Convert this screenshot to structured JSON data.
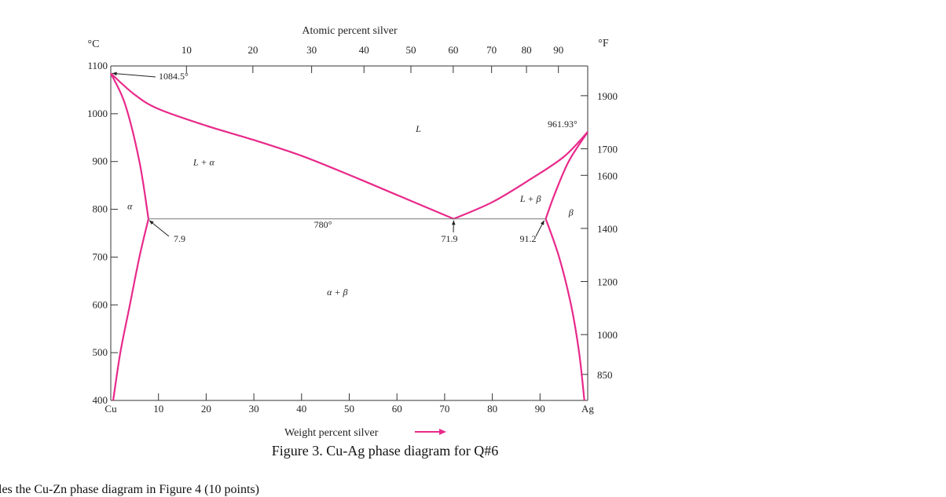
{
  "chart_data": {
    "type": "phase-diagram",
    "title": "Atomic percent silver",
    "xlabel": "Weight percent silver",
    "ylabel_left_unit": "°C",
    "ylabel_right_unit": "°F",
    "xlim": [
      0,
      100
    ],
    "ylim": [
      400,
      1100
    ],
    "x_ticks_bottom": [
      {
        "v": 0,
        "label": "Cu"
      },
      {
        "v": 10,
        "label": "10"
      },
      {
        "v": 20,
        "label": "20"
      },
      {
        "v": 30,
        "label": "30"
      },
      {
        "v": 40,
        "label": "40"
      },
      {
        "v": 50,
        "label": "50"
      },
      {
        "v": 60,
        "label": "60"
      },
      {
        "v": 70,
        "label": "70"
      },
      {
        "v": 80,
        "label": "80"
      },
      {
        "v": 90,
        "label": "90"
      },
      {
        "v": 100,
        "label": "Ag"
      }
    ],
    "x_ticks_top": [
      {
        "v": 10,
        "label": "10"
      },
      {
        "v": 20,
        "label": "20"
      },
      {
        "v": 30,
        "label": "30"
      },
      {
        "v": 40,
        "label": "40"
      },
      {
        "v": 50,
        "label": "50"
      },
      {
        "v": 60,
        "label": "60"
      },
      {
        "v": 70,
        "label": "70"
      },
      {
        "v": 80,
        "label": "80"
      },
      {
        "v": 90,
        "label": "90"
      }
    ],
    "y_ticks_left": [
      400,
      500,
      600,
      700,
      800,
      900,
      1000,
      1100
    ],
    "y_ticks_right": [
      {
        "v": 850,
        "label": "850"
      },
      {
        "v": 1000,
        "label": "1000"
      },
      {
        "v": 1200,
        "label": "1200"
      },
      {
        "v": 1400,
        "label": "1400"
      },
      {
        "v": 1600,
        "label": "1600"
      },
      {
        "v": 1700,
        "label": "1700"
      },
      {
        "v": 1900,
        "label": "1900"
      }
    ],
    "curves": [
      {
        "name": "liquidus-left",
        "points": [
          [
            0,
            1084.5
          ],
          [
            5,
            1040
          ],
          [
            10,
            1010
          ],
          [
            20,
            975
          ],
          [
            30,
            945
          ],
          [
            40,
            912
          ],
          [
            50,
            872
          ],
          [
            60,
            830
          ],
          [
            71.9,
            780
          ]
        ]
      },
      {
        "name": "liquidus-right",
        "points": [
          [
            71.9,
            780
          ],
          [
            80,
            815
          ],
          [
            88,
            863
          ],
          [
            95,
            910
          ],
          [
            100,
            961.93
          ]
        ]
      },
      {
        "name": "solidus-alpha",
        "points": [
          [
            0,
            1084.5
          ],
          [
            3,
            1020
          ],
          [
            6,
            900
          ],
          [
            7.9,
            780
          ]
        ]
      },
      {
        "name": "solvus-alpha",
        "points": [
          [
            7.9,
            780
          ],
          [
            6,
            700
          ],
          [
            4,
            600
          ],
          [
            2,
            500
          ],
          [
            0.5,
            400
          ]
        ]
      },
      {
        "name": "solidus-beta",
        "points": [
          [
            100,
            961.93
          ],
          [
            96,
            900
          ],
          [
            93,
            830
          ],
          [
            91.2,
            780
          ]
        ]
      },
      {
        "name": "solvus-beta",
        "points": [
          [
            91.2,
            780
          ],
          [
            94,
            700
          ],
          [
            96.5,
            600
          ],
          [
            98.2,
            500
          ],
          [
            99.3,
            400
          ]
        ]
      }
    ],
    "eutectic_line": {
      "x1": 7.9,
      "x2": 91.2,
      "y": 780
    },
    "regions": [
      {
        "label": "L",
        "x": 64.5,
        "y": 962
      },
      {
        "label": "L + α",
        "x": 19.5,
        "y": 892
      },
      {
        "label": "α",
        "x": 4,
        "y": 800
      },
      {
        "label": "L + β",
        "x": 88,
        "y": 816
      },
      {
        "label": "β",
        "x": 96.5,
        "y": 787
      },
      {
        "label": "α + β",
        "x": 47.5,
        "y": 620
      }
    ],
    "annotations": [
      {
        "text": "1084.5°",
        "x": 0,
        "y": 1084.5
      },
      {
        "text": "961.93°",
        "x": 100,
        "y": 961.93
      },
      {
        "text": "780°",
        "x": 47.5,
        "y": 780
      },
      {
        "text": "7.9",
        "x": 7.9,
        "y": 780
      },
      {
        "text": "71.9",
        "x": 71.9,
        "y": 780
      },
      {
        "text": "91.2",
        "x": 91.2,
        "y": 780
      }
    ],
    "curve_color": "#e8298a",
    "arrow_color": "#e8298a"
  },
  "caption": "Figure 3. Cu-Ag phase diagram for Q#6",
  "bottom_text": "les the Cu-Zn phase diagram in Figure 4 (10 points)"
}
